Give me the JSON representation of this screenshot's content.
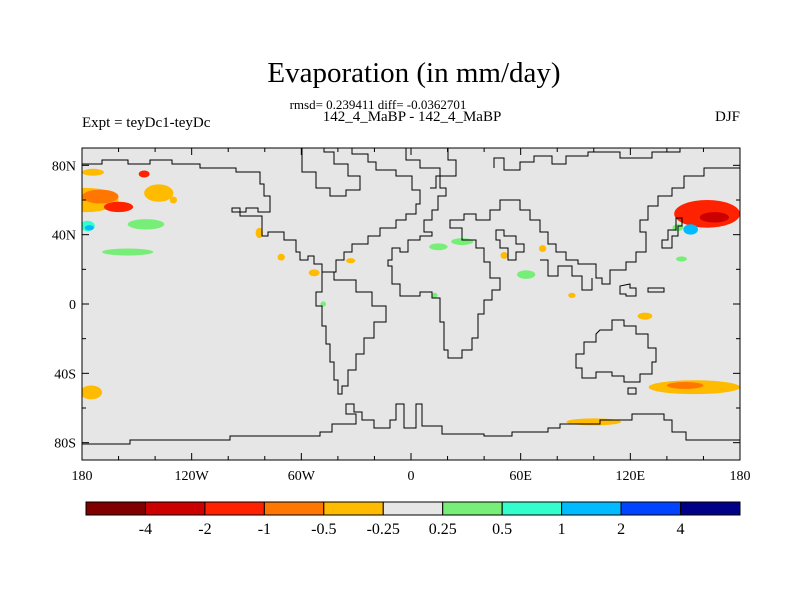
{
  "chart_data": {
    "type": "heatmap",
    "title": "Evaporation (in mm/day)",
    "stats_line": "rmsd= 0.239411 diff= -0.0362701",
    "subtitle_center": "142_4_MaBP - 142_4_MaBP",
    "subtitle_left": "Expt = teyDc1-teyDc",
    "subtitle_right": "DJF",
    "projection": "cylindrical-equidistant",
    "xlim": [
      -180,
      180
    ],
    "ylim": [
      -90,
      90
    ],
    "x_ticks": [
      {
        "value": -180,
        "label": "180"
      },
      {
        "value": -120,
        "label": "120W"
      },
      {
        "value": -60,
        "label": "60W"
      },
      {
        "value": 0,
        "label": "0"
      },
      {
        "value": 60,
        "label": "60E"
      },
      {
        "value": 120,
        "label": "120E"
      },
      {
        "value": 180,
        "label": "180"
      }
    ],
    "y_ticks": [
      {
        "value": 80,
        "label": "80N"
      },
      {
        "value": 40,
        "label": "40N"
      },
      {
        "value": 0,
        "label": "0"
      },
      {
        "value": -40,
        "label": "40S"
      },
      {
        "value": -80,
        "label": "80S"
      }
    ],
    "colorbar": {
      "bins": [
        {
          "color": "#800000"
        },
        {
          "color": "#cc0000"
        },
        {
          "color": "#ff2200"
        },
        {
          "color": "#ff7700"
        },
        {
          "color": "#ffbb00"
        },
        {
          "color": "#e6e6e6"
        },
        {
          "color": "#77ee77"
        },
        {
          "color": "#33ffcc"
        },
        {
          "color": "#00bbff"
        },
        {
          "color": "#0044ff"
        },
        {
          "color": "#000088"
        }
      ],
      "labels": [
        "-4",
        "-2",
        "-1",
        "-0.5",
        "-0.25",
        "0.25",
        "0.5",
        "1",
        "2",
        "4"
      ]
    },
    "background_color": "#e6e6e6",
    "anomaly_regions": [
      {
        "name": "n-pacific-west-band",
        "lon": -178,
        "lat": 60,
        "rx": 18,
        "ry": 7,
        "value": -0.3
      },
      {
        "name": "n-pacific-west-core",
        "lon": -170,
        "lat": 62,
        "rx": 10,
        "ry": 4,
        "value": -0.7
      },
      {
        "name": "n-pacific-west-core2",
        "lon": -160,
        "lat": 56,
        "rx": 8,
        "ry": 3,
        "value": -1.5
      },
      {
        "name": "n-pacific-east-strip",
        "lon": -138,
        "lat": 64,
        "rx": 8,
        "ry": 5,
        "value": -0.3
      },
      {
        "name": "bering-spot",
        "lon": -146,
        "lat": 75,
        "rx": 3,
        "ry": 2,
        "value": -1.5
      },
      {
        "name": "arctic-strip",
        "lon": -174,
        "lat": 76,
        "rx": 6,
        "ry": 2,
        "value": -0.3
      },
      {
        "name": "mid-lat-green-west",
        "lon": -177,
        "lat": 45,
        "rx": 4,
        "ry": 3,
        "value": 0.6
      },
      {
        "name": "mid-lat-cyan",
        "lon": -176,
        "lat": 44,
        "rx": 2.5,
        "ry": 1.5,
        "value": 1.2
      },
      {
        "name": "mid-lat-green-east",
        "lon": -145,
        "lat": 46,
        "rx": 10,
        "ry": 3,
        "value": 0.35
      },
      {
        "name": "subtropic-green-band",
        "lon": -155,
        "lat": 30,
        "rx": 14,
        "ry": 2,
        "value": 0.3
      },
      {
        "name": "ne-pacific-spot",
        "lon": -130,
        "lat": 60,
        "rx": 2,
        "ry": 2,
        "value": -0.3
      },
      {
        "name": "hudson-spot",
        "lon": -83,
        "lat": 41,
        "rx": 2,
        "ry": 3,
        "value": -0.3
      },
      {
        "name": "gulf-spot",
        "lon": -71,
        "lat": 27,
        "rx": 2,
        "ry": 2,
        "value": -0.3
      },
      {
        "name": "n-atlantic-spot",
        "lon": -33,
        "lat": 25,
        "rx": 2.5,
        "ry": 1.5,
        "value": -0.3
      },
      {
        "name": "caribbean-spot",
        "lon": -53,
        "lat": 18,
        "rx": 3,
        "ry": 2,
        "value": -0.3
      },
      {
        "name": "e-atlantic-green",
        "lon": 15,
        "lat": 33,
        "rx": 5,
        "ry": 2,
        "value": 0.3
      },
      {
        "name": "mediterranean-green",
        "lon": 28,
        "lat": 36,
        "rx": 6,
        "ry": 2,
        "value": 0.3
      },
      {
        "name": "africa-green-dot",
        "lon": 13,
        "lat": 5,
        "rx": 1.5,
        "ry": 1.5,
        "value": 0.3
      },
      {
        "name": "sahara-green-dot",
        "lon": -48,
        "lat": 0,
        "rx": 1.5,
        "ry": 1.5,
        "value": 0.3
      },
      {
        "name": "arabian-sea-green",
        "lon": 63,
        "lat": 17,
        "rx": 5,
        "ry": 2.5,
        "value": 0.3
      },
      {
        "name": "red-sea-orange",
        "lon": 51,
        "lat": 28,
        "rx": 2,
        "ry": 2,
        "value": -0.3
      },
      {
        "name": "indian-orange",
        "lon": 72,
        "lat": 32,
        "rx": 2,
        "ry": 2,
        "value": -0.3
      },
      {
        "name": "bay-of-bengal-orange",
        "lon": 88,
        "lat": 5,
        "rx": 2,
        "ry": 1.5,
        "value": -0.3
      },
      {
        "name": "kuroshio-red",
        "lon": 162,
        "lat": 52,
        "rx": 18,
        "ry": 8,
        "value": -1.5
      },
      {
        "name": "kuroshio-dark",
        "lon": 166,
        "lat": 50,
        "rx": 8,
        "ry": 3,
        "value": -3
      },
      {
        "name": "kuroshio-cyan",
        "lon": 153,
        "lat": 43,
        "rx": 4,
        "ry": 3,
        "value": 1.2
      },
      {
        "name": "kuroshio-green",
        "lon": 146,
        "lat": 44,
        "rx": 3,
        "ry": 2,
        "value": 0.35
      },
      {
        "name": "w-pacific-green",
        "lon": 148,
        "lat": 26,
        "rx": 3,
        "ry": 1.5,
        "value": 0.3
      },
      {
        "name": "w-pacific-orange",
        "lon": 128,
        "lat": -7,
        "rx": 4,
        "ry": 2,
        "value": -0.3
      },
      {
        "name": "southern-ocean-band",
        "lon": 155,
        "lat": -48,
        "rx": 25,
        "ry": 4,
        "value": -0.3
      },
      {
        "name": "southern-ocean-core",
        "lon": 150,
        "lat": -47,
        "rx": 10,
        "ry": 2,
        "value": -0.7
      },
      {
        "name": "southern-ocean-south",
        "lon": 100,
        "lat": -68,
        "rx": 15,
        "ry": 2,
        "value": -0.3
      },
      {
        "name": "s-atlantic-west",
        "lon": -175,
        "lat": -51,
        "rx": 6,
        "ry": 4,
        "value": -0.3
      }
    ]
  }
}
